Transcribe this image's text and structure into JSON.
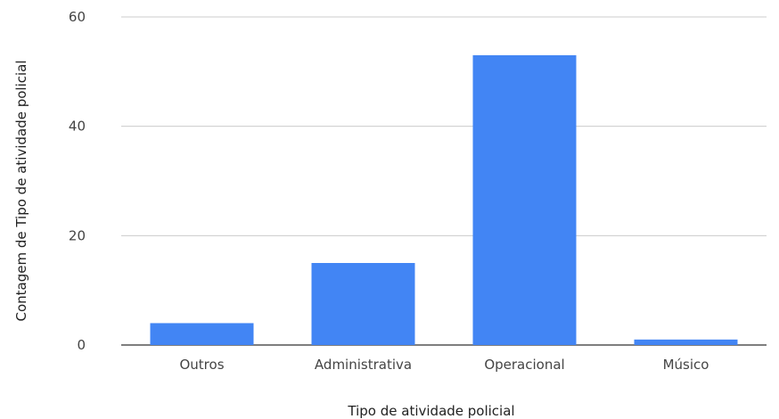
{
  "chart_data": {
    "type": "bar",
    "categories": [
      "Outros",
      "Administrativa",
      "Operacional",
      "Músico"
    ],
    "values": [
      4,
      15,
      53,
      1
    ],
    "xlabel": "Tipo de atividade policial",
    "ylabel": "Contagem de Tipo de atividade policial",
    "ylim": [
      0,
      60
    ],
    "yticks": [
      0,
      20,
      40,
      60
    ],
    "grid": true,
    "legend": "none",
    "colors": {
      "bar": "#4285f4",
      "grid": "#cccccc",
      "baseline": "#333333"
    }
  }
}
